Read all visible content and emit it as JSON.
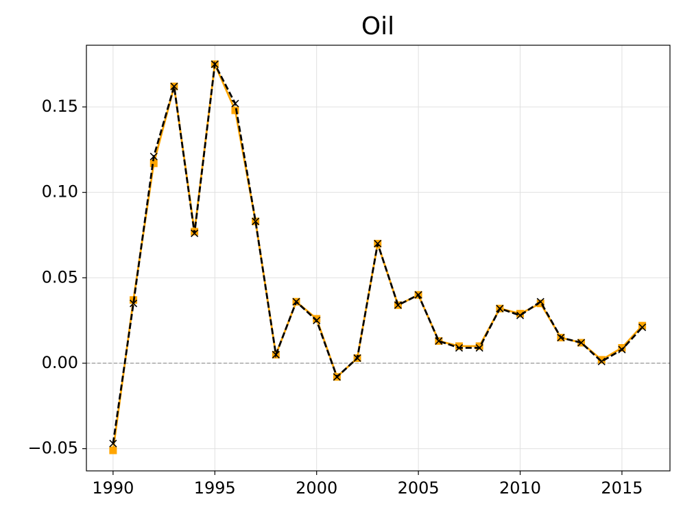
{
  "chart_data": {
    "type": "line",
    "title": "Oil",
    "x": [
      1990,
      1991,
      1992,
      1993,
      1994,
      1995,
      1996,
      1997,
      1998,
      1999,
      2000,
      2001,
      2002,
      2003,
      2004,
      2005,
      2006,
      2007,
      2008,
      2009,
      2010,
      2011,
      2012,
      2013,
      2014,
      2015,
      2016
    ],
    "series": [
      {
        "color": "#ffa500",
        "line_style": "solid",
        "marker": "square",
        "values": [
          -0.051,
          0.037,
          0.117,
          0.162,
          0.077,
          0.175,
          0.148,
          0.083,
          0.005,
          0.036,
          0.026,
          -0.008,
          0.003,
          0.07,
          0.034,
          0.04,
          0.013,
          0.01,
          0.01,
          0.032,
          0.029,
          0.035,
          0.015,
          0.012,
          0.002,
          0.009,
          0.022
        ]
      },
      {
        "color": "#000000",
        "line_style": "dashed",
        "marker": "x",
        "values": [
          -0.047,
          0.035,
          0.121,
          0.162,
          0.076,
          0.175,
          0.152,
          0.083,
          0.005,
          0.036,
          0.025,
          -0.008,
          0.003,
          0.07,
          0.034,
          0.04,
          0.013,
          0.009,
          0.009,
          0.032,
          0.028,
          0.036,
          0.015,
          0.012,
          0.001,
          0.008,
          0.021
        ]
      }
    ],
    "xlim": [
      1988.69,
      2017.36
    ],
    "ylim": [
      -0.063,
      0.1861
    ],
    "xticks": [
      1990,
      1995,
      2000,
      2005,
      2010,
      2015
    ],
    "yticks": [
      {
        "value": -0.05,
        "label": "−0.05"
      },
      {
        "value": 0,
        "label": "0.00"
      },
      {
        "value": 0.05,
        "label": "0.05"
      },
      {
        "value": 0.1,
        "label": "0.10"
      },
      {
        "value": 0.15,
        "label": "0.15"
      }
    ],
    "reference_line": 0,
    "grid": true
  }
}
